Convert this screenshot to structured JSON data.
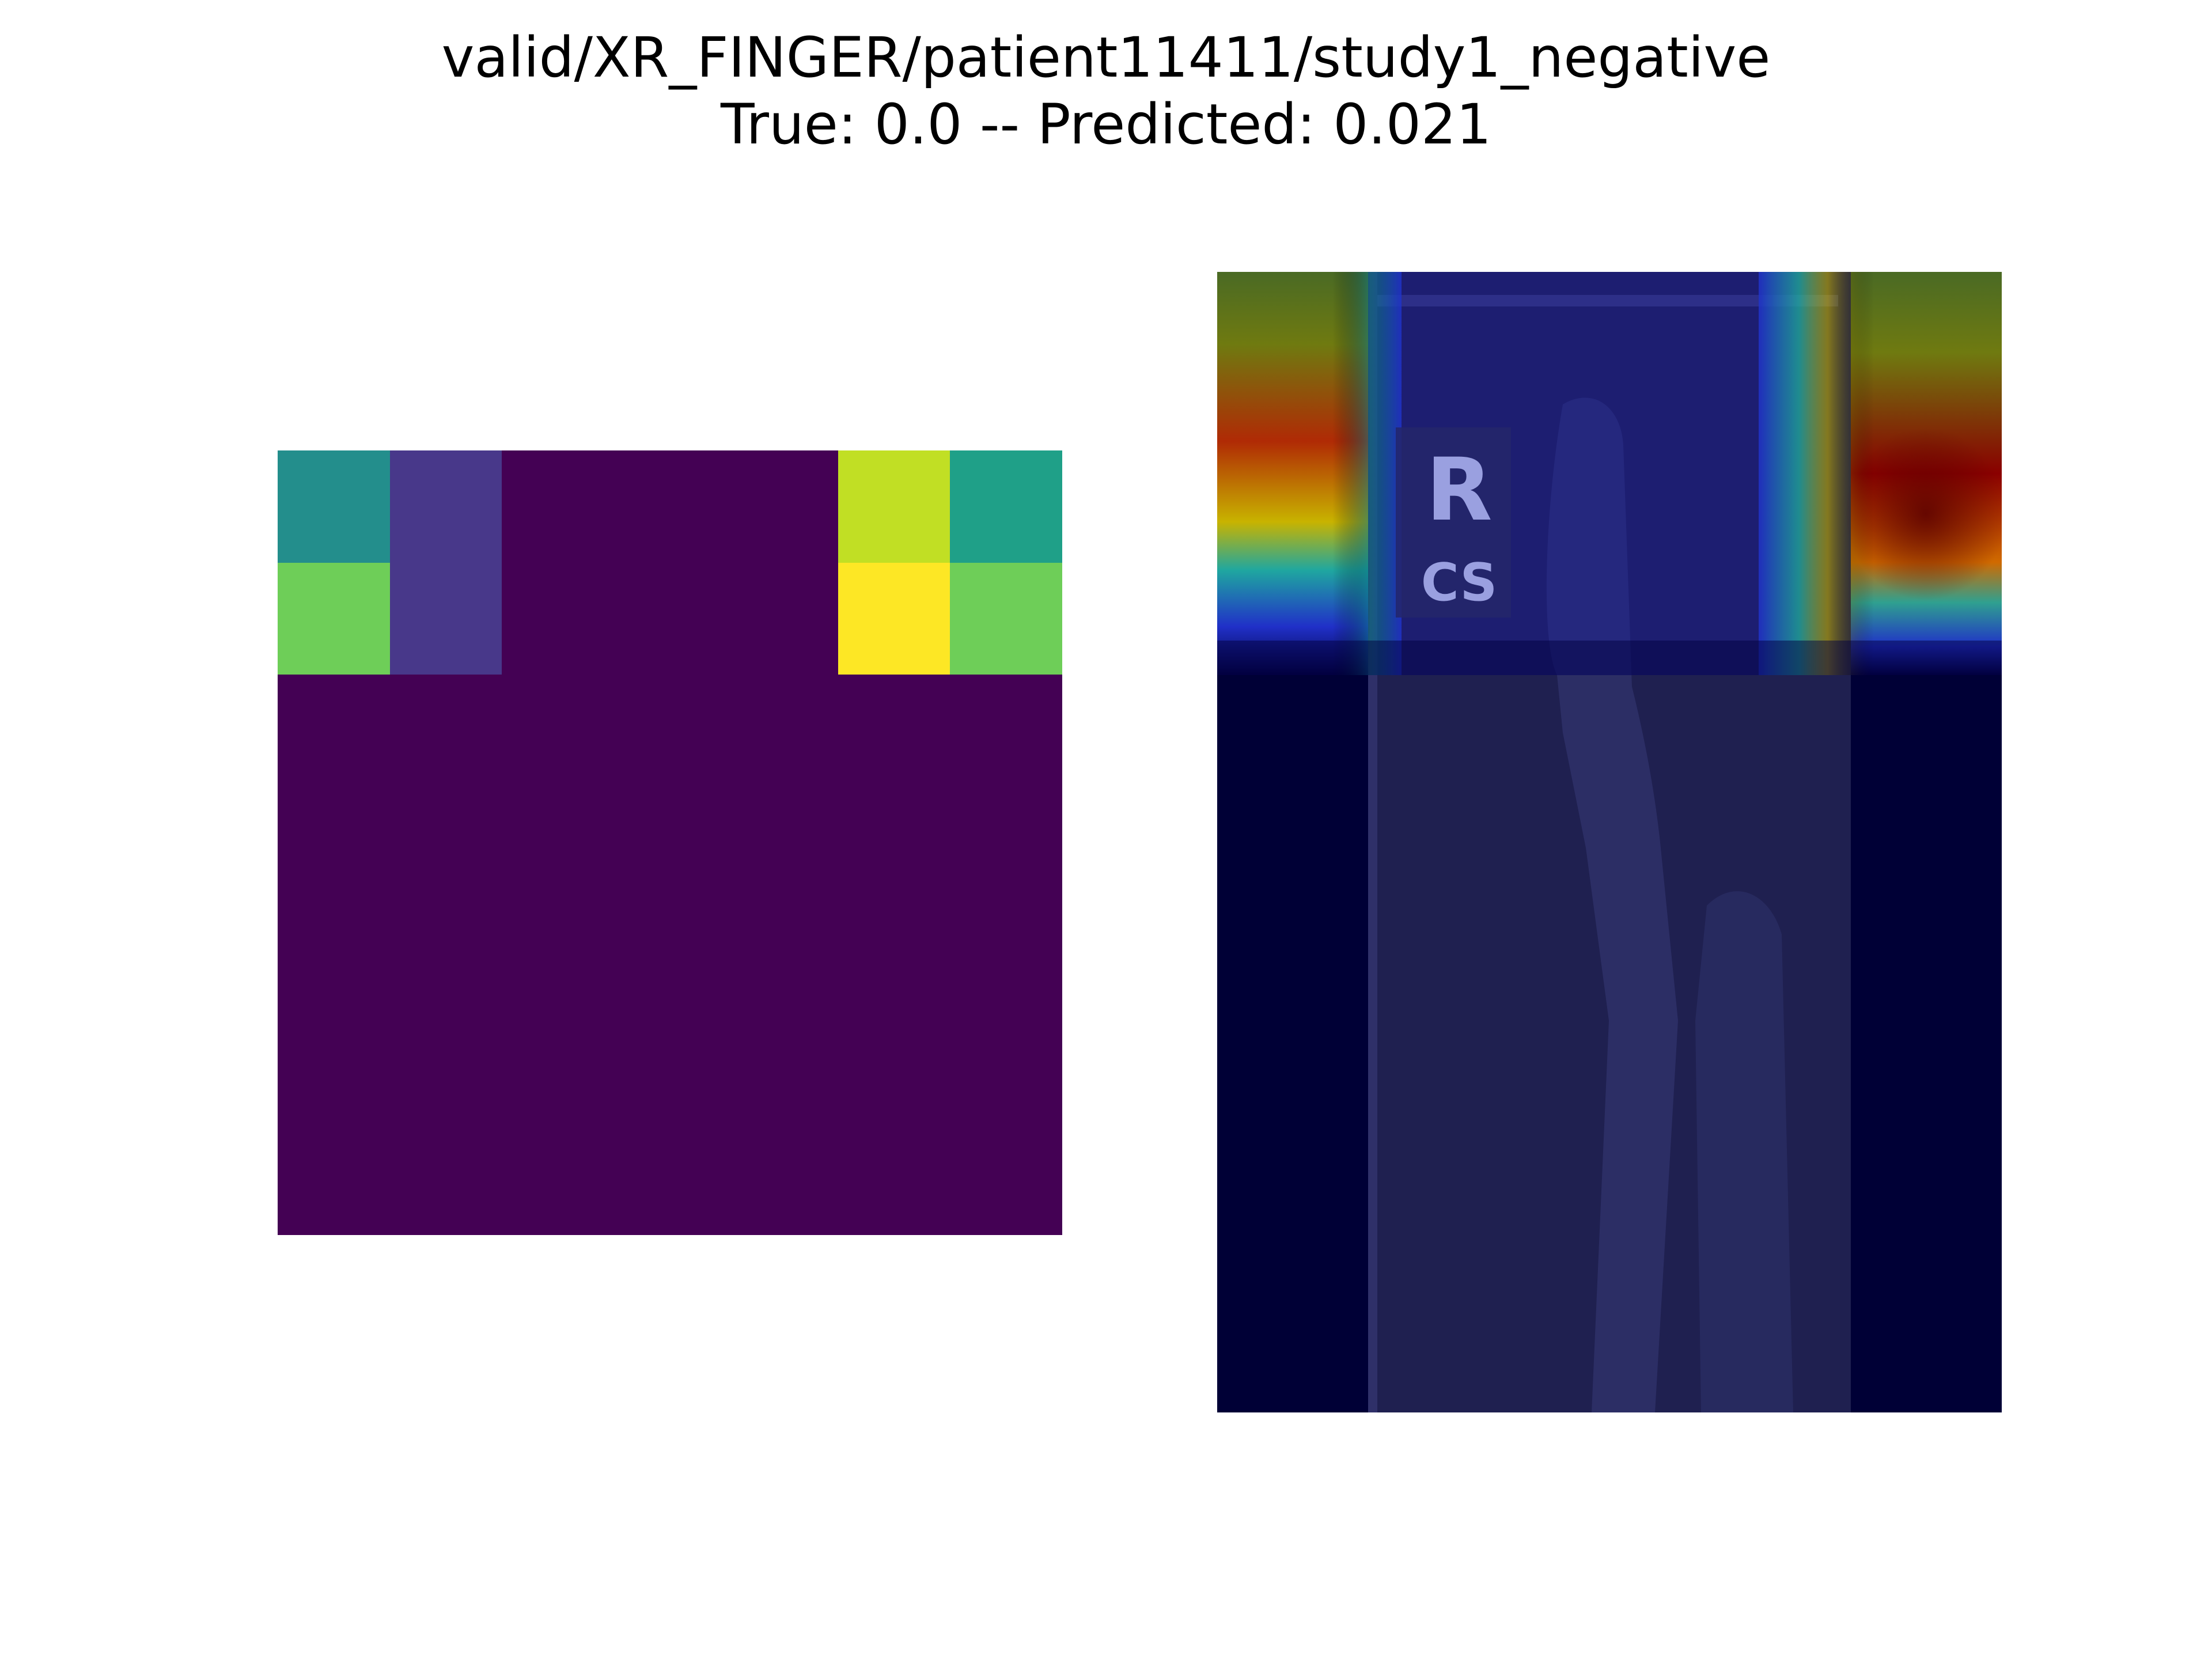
{
  "figure": {
    "title_line_1": "valid/XR_FINGER/patient11411/study1_negative",
    "title_line_2": "True: 0.0 -- Predicted: 0.021"
  },
  "heatmap": {
    "colormap": "viridis",
    "rows": 7,
    "cols": 7,
    "values": [
      [
        0.47,
        0.14,
        0.0,
        0.0,
        0.0,
        0.88,
        0.55
      ],
      [
        0.72,
        0.14,
        0.0,
        0.0,
        0.0,
        1.0,
        0.72
      ],
      [
        0.0,
        0.0,
        0.0,
        0.0,
        0.0,
        0.0,
        0.0
      ],
      [
        0.0,
        0.0,
        0.0,
        0.0,
        0.0,
        0.0,
        0.0
      ],
      [
        0.0,
        0.0,
        0.0,
        0.0,
        0.0,
        0.0,
        0.0
      ],
      [
        0.0,
        0.0,
        0.0,
        0.0,
        0.0,
        0.0,
        0.0
      ],
      [
        0.0,
        0.0,
        0.0,
        0.0,
        0.0,
        0.0,
        0.0
      ]
    ]
  },
  "overlay": {
    "colormap": "jet",
    "marker_text_line_1": "R",
    "marker_text_line_2": "CS"
  }
}
